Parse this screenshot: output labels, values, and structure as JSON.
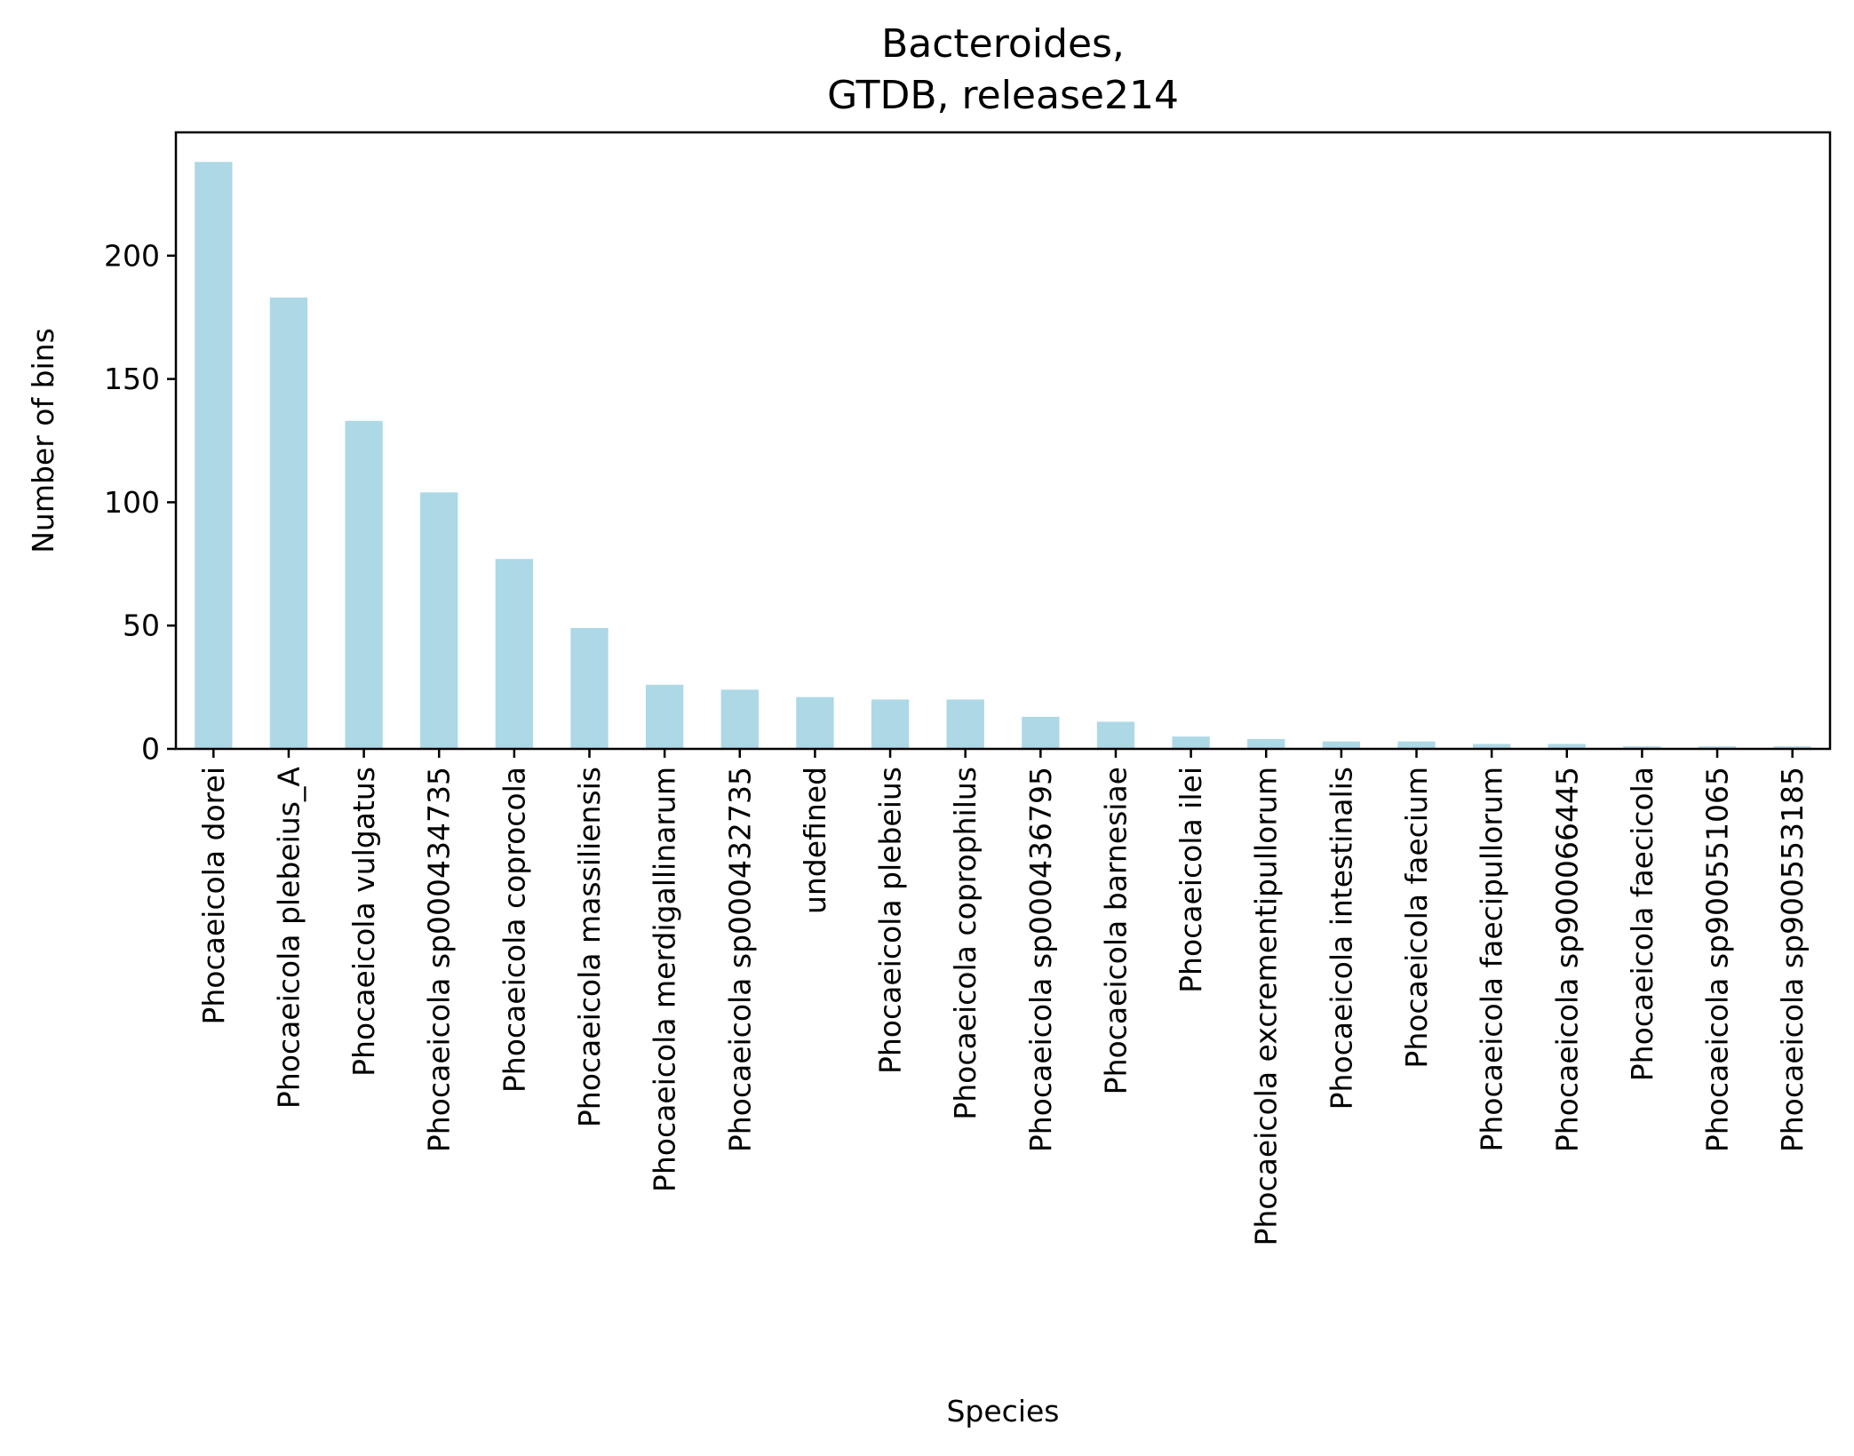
{
  "chart_data": {
    "type": "bar",
    "title_line1": "Bacteroides,",
    "title_line2": "GTDB, release214",
    "xlabel": "Species",
    "ylabel": "Number of bins",
    "ylim": [
      0,
      250
    ],
    "yticks": [
      0,
      50,
      100,
      150,
      200
    ],
    "grid": false,
    "bar_color": "#add8e6",
    "categories": [
      "Phocaeicola dorei",
      "Phocaeicola plebeius_A",
      "Phocaeicola vulgatus",
      "Phocaeicola sp000434735",
      "Phocaeicola coprocola",
      "Phocaeicola massiliensis",
      "Phocaeicola merdigallinarum",
      "Phocaeicola sp000432735",
      "undefined",
      "Phocaeicola plebeius",
      "Phocaeicola coprophilus",
      "Phocaeicola sp000436795",
      "Phocaeicola barnesiae",
      "Phocaeicola ilei",
      "Phocaeicola excrementipullorum",
      "Phocaeicola intestinalis",
      "Phocaeicola faecium",
      "Phocaeicola faecipullorum",
      "Phocaeicola sp900066445",
      "Phocaeicola faecicola",
      "Phocaeicola sp900551065",
      "Phocaeicola sp900553185"
    ],
    "values": [
      238,
      183,
      133,
      104,
      77,
      49,
      26,
      24,
      21,
      20,
      20,
      13,
      11,
      5,
      4,
      3,
      3,
      2,
      2,
      1,
      1,
      1
    ]
  }
}
